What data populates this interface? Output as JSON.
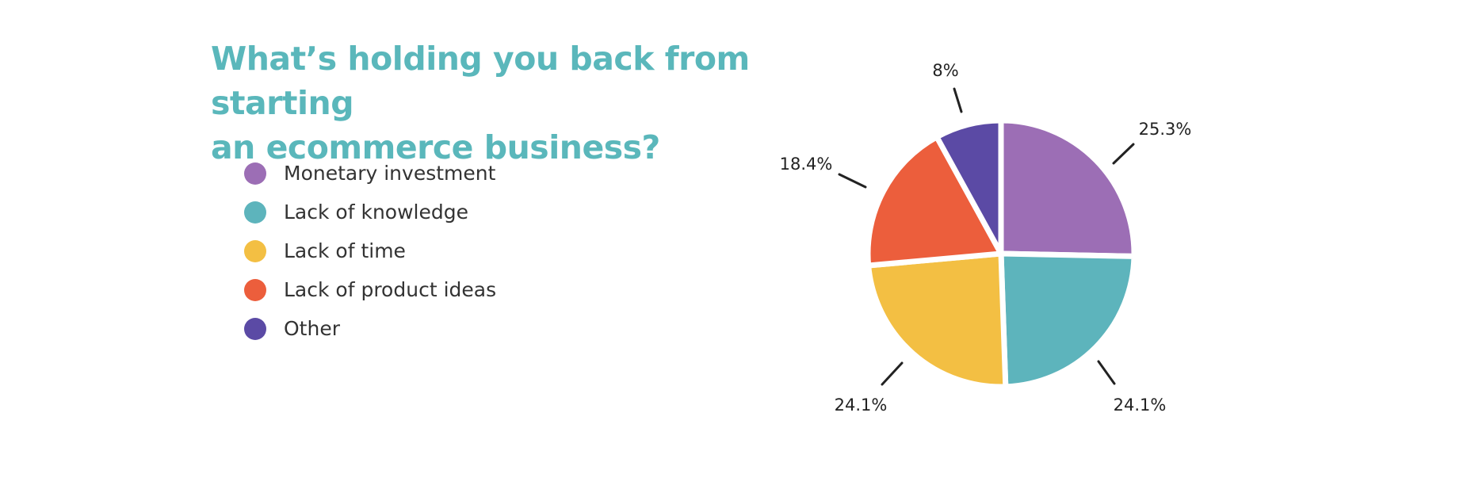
{
  "title_lines": [
    "What’s holding you back from starting",
    "an ecommerce business?"
  ],
  "colors": {
    "title": "#5ab7bb",
    "slice_border": "#ffffff"
  },
  "chart_data": {
    "type": "pie",
    "title": "What’s holding you back from starting an ecommerce business?",
    "legend_position": "left",
    "slices": [
      {
        "label": "Monetary investment",
        "value": 25.3,
        "value_label": "25.3%",
        "color": "#9c6eb5"
      },
      {
        "label": "Lack of knowledge",
        "value": 24.1,
        "value_label": "24.1%",
        "color": "#5db4bc"
      },
      {
        "label": "Lack of time",
        "value": 24.1,
        "value_label": "24.1%",
        "color": "#f3bf43"
      },
      {
        "label": "Lack of product ideas",
        "value": 18.4,
        "value_label": "18.4%",
        "color": "#ec5e3c"
      },
      {
        "label": "Other",
        "value": 8,
        "value_label": "8%",
        "color": "#5b4aa5"
      }
    ]
  }
}
